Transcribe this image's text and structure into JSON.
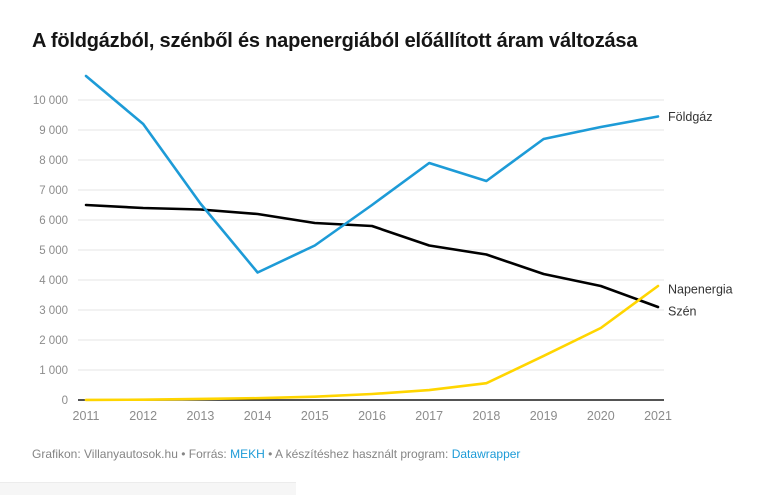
{
  "title": "A földgázból, szénből és napenergiából előállított áram változása",
  "footer": {
    "prefix": "Grafikon: Villanyautosok.hu • Forrás: ",
    "source_link": "MEKH",
    "middle": " • A készítéshez használt program: ",
    "tool_link": "Datawrapper"
  },
  "colors": {
    "foldgaz": "#1d9bd7",
    "napenergia": "#ffd500",
    "szen": "#000000",
    "grid": "#e6e6e6",
    "baseline": "#1a1a1a",
    "axis_text": "#8c8c8c",
    "label_text": "#333333",
    "footer_text": "#858585",
    "link": "#1d9bd7",
    "title_text": "#151515"
  },
  "chart_data": {
    "type": "line",
    "title": "A földgázból, szénből és napenergiából előállított áram változása",
    "xlabel": "",
    "ylabel": "",
    "grid": true,
    "legend_position": "direct-labels-at-line-end",
    "ylim": [
      0,
      10850
    ],
    "categories": [
      "2011",
      "2012",
      "2013",
      "2014",
      "2015",
      "2016",
      "2017",
      "2018",
      "2019",
      "2020",
      "2021"
    ],
    "y_ticks": [
      {
        "value": 0,
        "label": "0"
      },
      {
        "value": 1000,
        "label": "1 000"
      },
      {
        "value": 2000,
        "label": "2 000"
      },
      {
        "value": 3000,
        "label": "3 000"
      },
      {
        "value": 4000,
        "label": "4 000"
      },
      {
        "value": 5000,
        "label": "5 000"
      },
      {
        "value": 6000,
        "label": "6 000"
      },
      {
        "value": 7000,
        "label": "7 000"
      },
      {
        "value": 8000,
        "label": "8 000"
      },
      {
        "value": 9000,
        "label": "9 000"
      },
      {
        "value": 10000,
        "label": "10 000"
      }
    ],
    "series": [
      {
        "name": "Szén",
        "color": "#000000",
        "label_offset": 4,
        "values": [
          6500,
          6400,
          6350,
          6200,
          5900,
          5800,
          5150,
          4850,
          4200,
          3800,
          3100
        ]
      },
      {
        "name": "Napenergia",
        "color": "#ffd500",
        "label_offset": 3,
        "values": [
          5,
          10,
          35,
          60,
          110,
          200,
          330,
          560,
          1470,
          2400,
          3800
        ]
      },
      {
        "name": "Földgáz",
        "color": "#1d9bd7",
        "label_offset": 0,
        "values": [
          10800,
          9200,
          6550,
          4250,
          5150,
          6500,
          7900,
          7300,
          8700,
          9100,
          9450
        ]
      }
    ]
  }
}
